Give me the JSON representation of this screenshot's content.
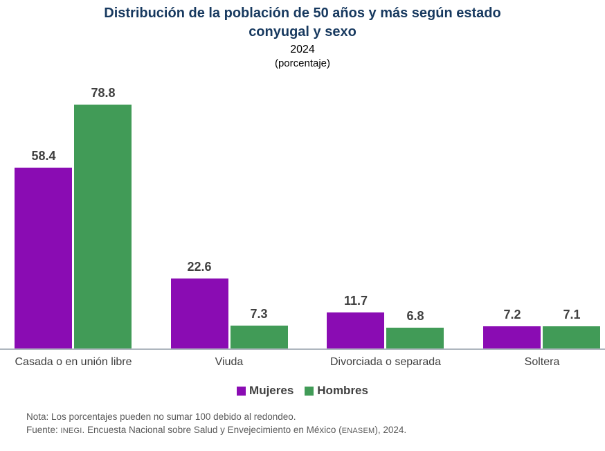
{
  "header": {
    "title_line1": "Distribución de la población de 50 años y más según estado",
    "title_line2": "conyugal y sexo",
    "year": "2024",
    "unit": "(porcentaje)"
  },
  "chart_data": {
    "type": "bar",
    "title": "Distribución de la población de 50 años y más según estado conyugal y sexo",
    "subtitle": "2024 (porcentaje)",
    "categories": [
      "Casada o en unión libre",
      "Viuda",
      "Divorciada o separada",
      "Soltera"
    ],
    "series": [
      {
        "name": "Mujeres",
        "color": "#8A0CB3",
        "values": [
          58.4,
          22.6,
          11.7,
          7.2
        ]
      },
      {
        "name": "Hombres",
        "color": "#419B57",
        "values": [
          78.8,
          7.3,
          6.8,
          7.1
        ]
      }
    ],
    "value_labels": true,
    "ylim": [
      0,
      88
    ],
    "grid": false,
    "legend_position": "bottom",
    "xlabel": "",
    "ylabel": ""
  },
  "colors": {
    "title": "#17395F",
    "mujeres": "#8A0CB3",
    "hombres": "#419B57",
    "axis_line": "#AEB6BE",
    "label_text": "#404040",
    "footer_text": "#595959"
  },
  "footer": {
    "note": "Nota: Los porcentajes pueden no sumar 100 debido al redondeo.",
    "source_prefix": "Fuente: ",
    "source_inegi": "INEGI",
    "source_mid": ". Encuesta Nacional sobre Salud y Envejecimiento en México (",
    "source_enasem": "ENASEM",
    "source_suffix": "), 2024."
  }
}
